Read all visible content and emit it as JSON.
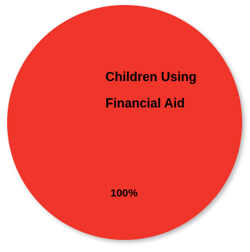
{
  "chart_data": {
    "type": "pie",
    "categories": [
      "Children Using Financial Aid"
    ],
    "values": [
      100
    ],
    "data_labels": [
      "100%"
    ],
    "colors": [
      "#f0342a"
    ]
  }
}
